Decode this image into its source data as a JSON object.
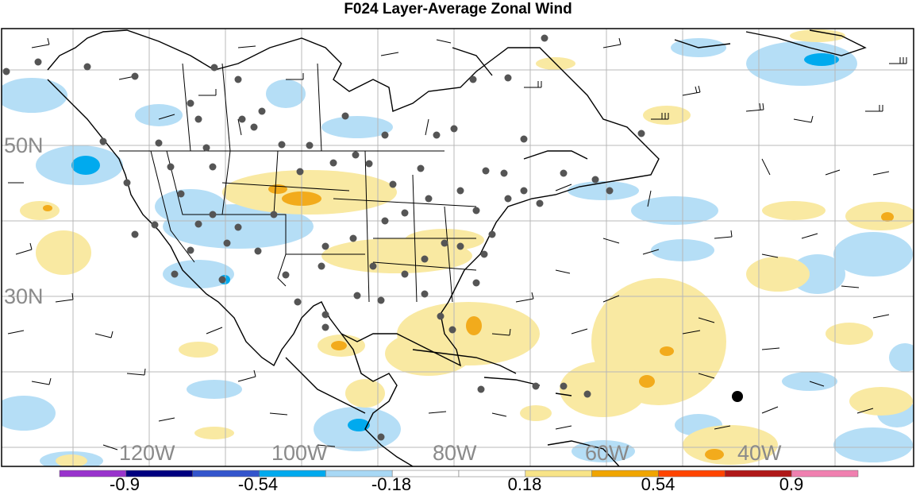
{
  "title": "F024 Layer-Average Zonal Wind",
  "lat_labels": [
    "50N",
    "30N"
  ],
  "lon_labels": [
    "120W",
    "100W",
    "80W",
    "60W",
    "40W"
  ],
  "colorbar": {
    "colors": [
      "#9933cc",
      "#000080",
      "#3355cc",
      "#00aaee",
      "#a8d8f5",
      "#ffffff",
      "#ffffff",
      "#f8e488",
      "#f0a500",
      "#ff4400",
      "#b01818",
      "#f080b0"
    ],
    "tick_labels": [
      "-0.9",
      "-0.54",
      "-0.18",
      "0.18",
      "0.54",
      "0.9"
    ]
  },
  "colors": {
    "neg_light": "#b5def6",
    "neg_mid": "#00aaee",
    "pos_light": "#f9e9a2",
    "pos_mid": "#f2ab1c",
    "station": "#555555"
  }
}
